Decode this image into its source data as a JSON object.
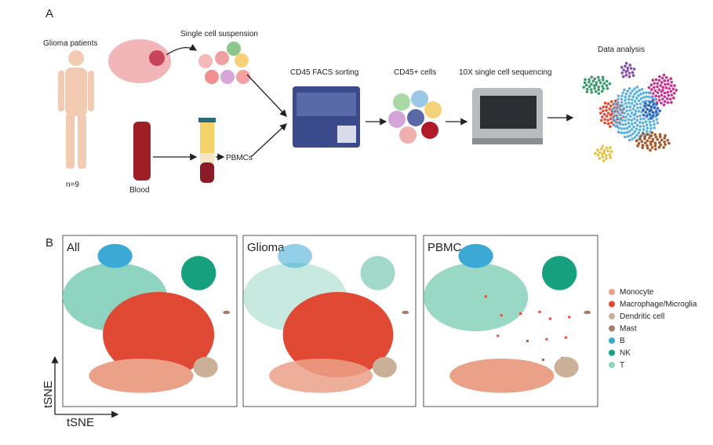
{
  "panel_a": {
    "label": "A",
    "patients": "Glioma patients",
    "n": "n=9",
    "suspension": "Single cell suspension",
    "blood": "Blood",
    "pbmcs": "PBMCs",
    "facs": "CD45 FACS sorting",
    "cd45": "CD45+ cells",
    "sequencing": "10X single cell sequencing",
    "analysis": "Data analysis"
  },
  "panel_b": {
    "label": "B",
    "plots": [
      "All",
      "Glioma",
      "PBMC"
    ],
    "x_axis": "tSNE",
    "y_axis": "tSNE",
    "legend": [
      {
        "name": "Monocyte",
        "color": "#eba188"
      },
      {
        "name": "Macrophage/Microglia",
        "color": "#e04a35"
      },
      {
        "name": "Dendritic cell",
        "color": "#c9b096"
      },
      {
        "name": "Mast",
        "color": "#a57d68"
      },
      {
        "name": "B",
        "color": "#3ba9d6"
      },
      {
        "name": "NK",
        "color": "#16a07e"
      },
      {
        "name": "T",
        "color": "#8fd4c0"
      }
    ]
  }
}
